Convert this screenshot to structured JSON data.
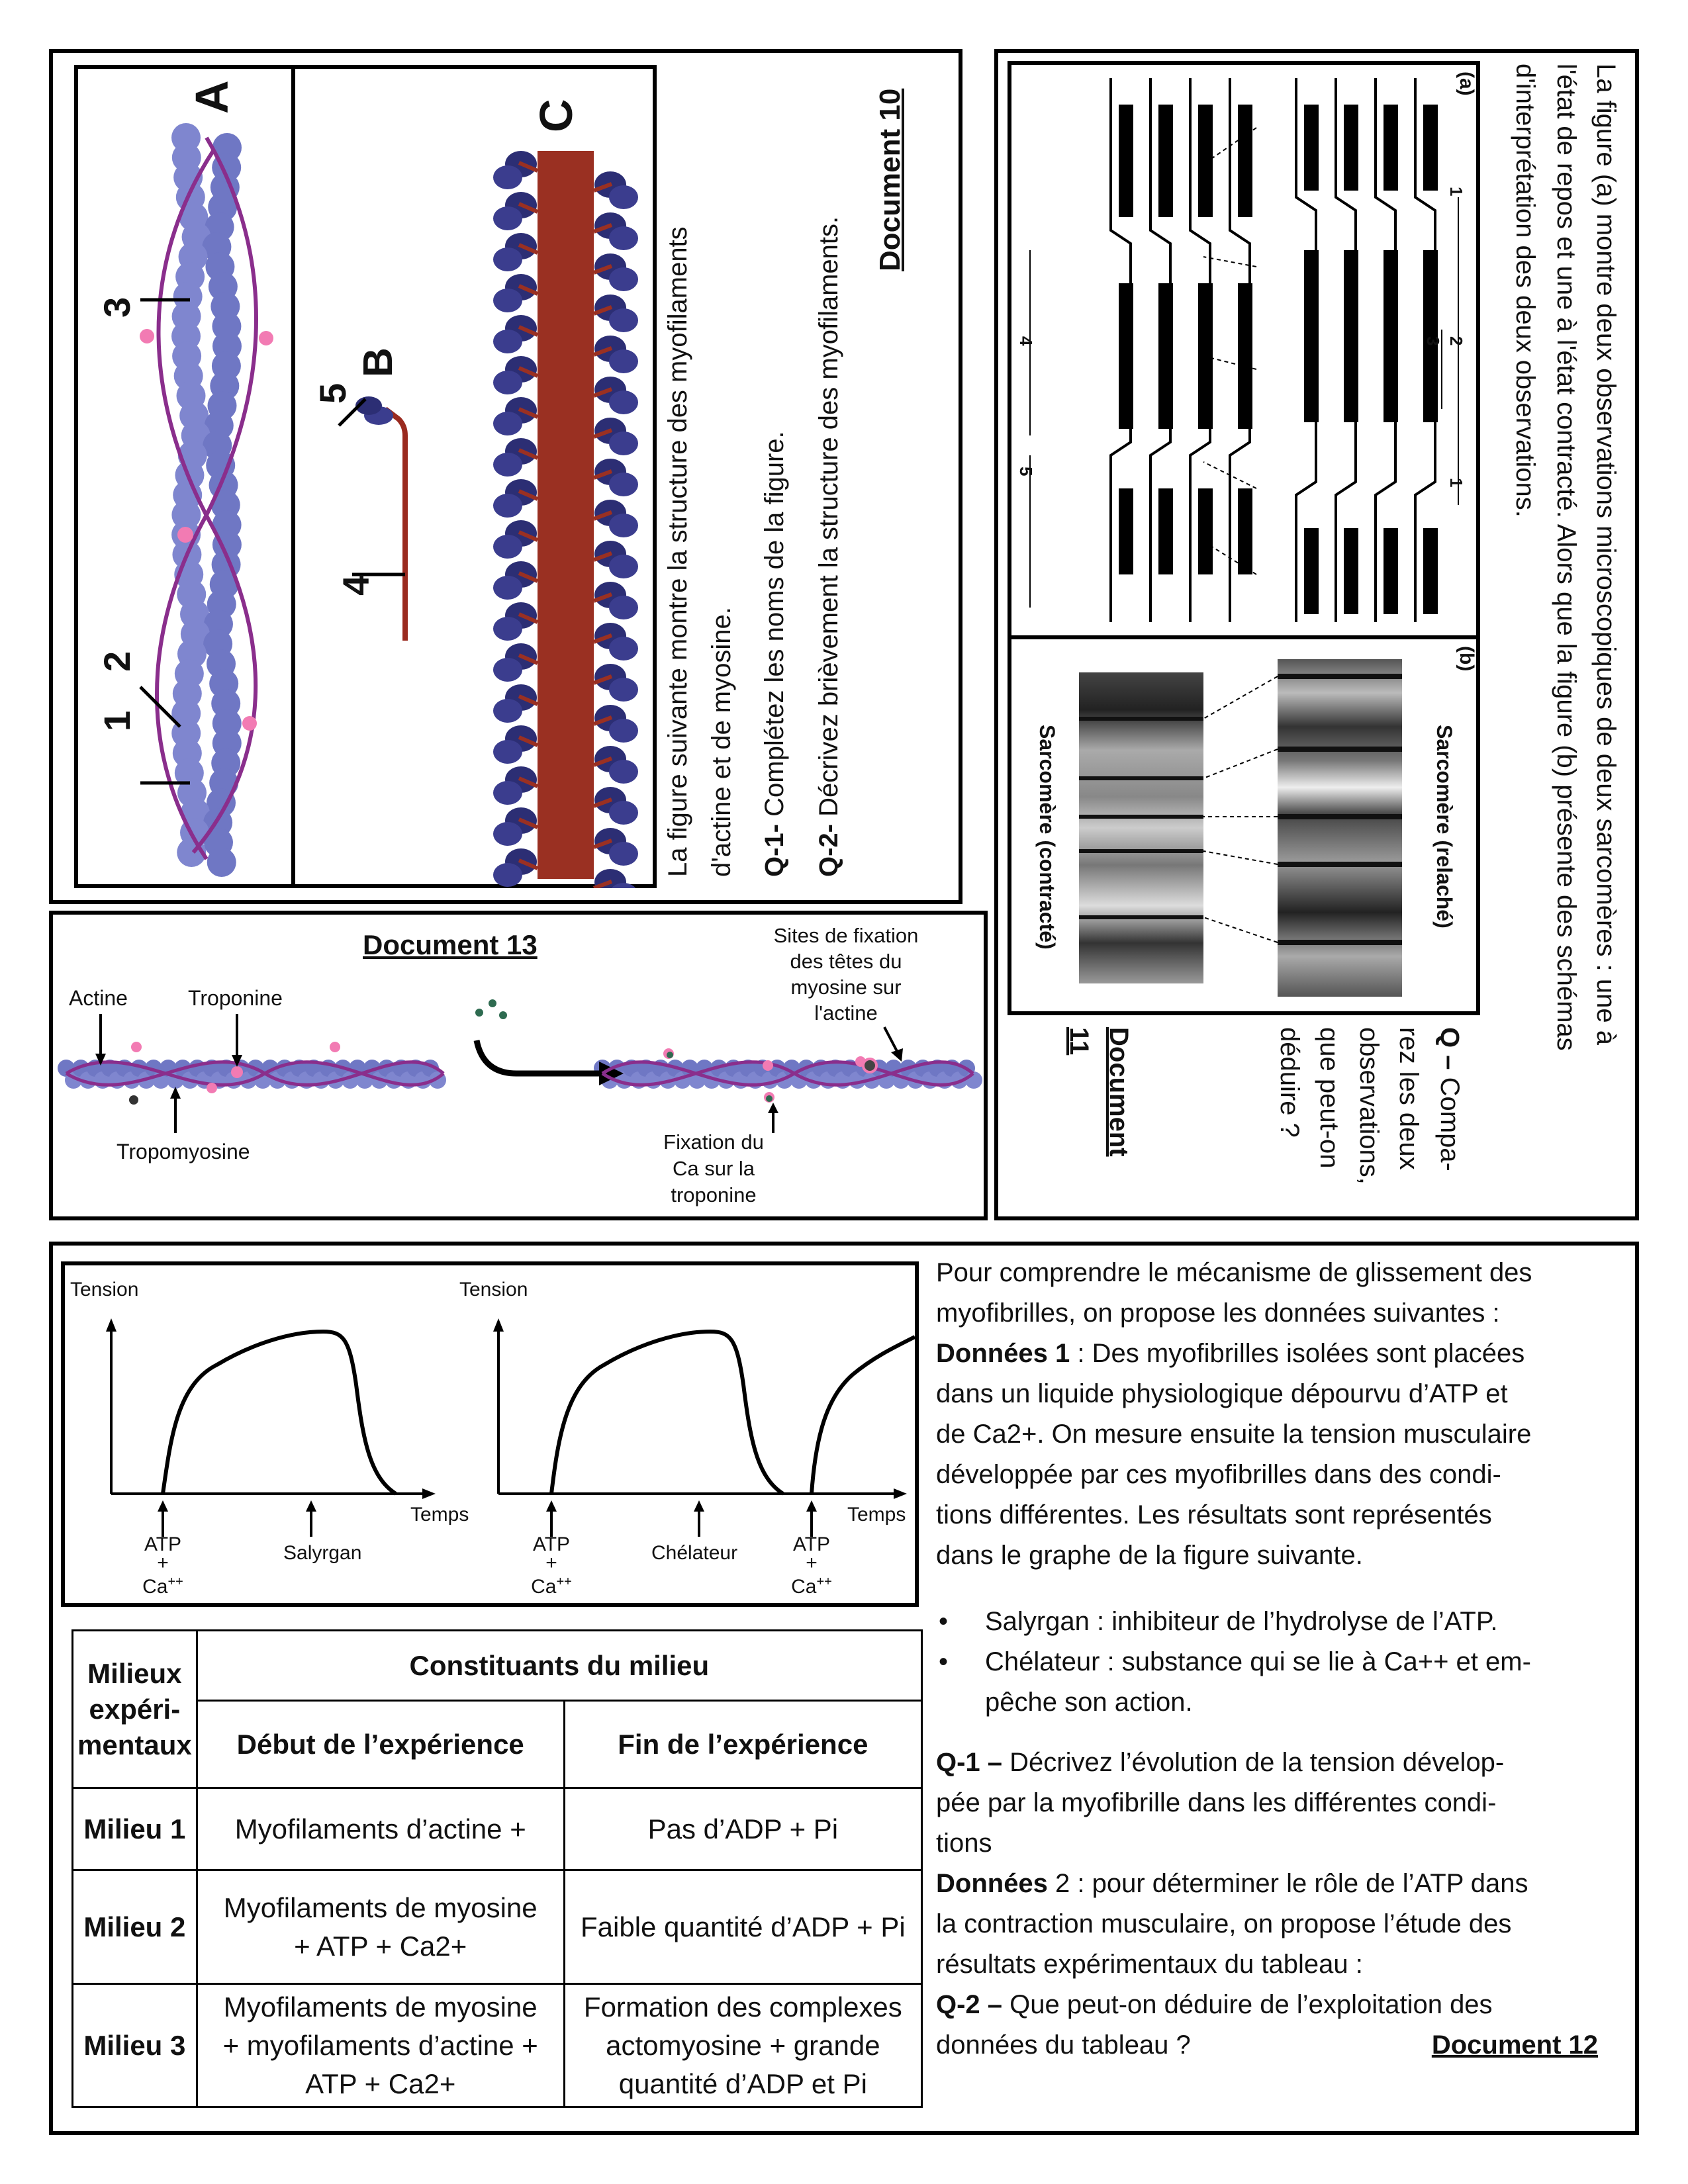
{
  "doc10": {
    "title": "Document 10",
    "label_a": "A",
    "label_b": "B",
    "label_c": "C",
    "n1": "1",
    "n2": "2",
    "n3": "3",
    "n4": "4",
    "n5": "5",
    "intro_line1": "La figure suivante montre la structure des myofilaments",
    "intro_line2": "d'actine et de myosine.",
    "q1_label": "Q-1-",
    "q1_text": "Complétez les noms de la figure.",
    "q2_label": "Q-2-",
    "q2_text": "Décrivez brièvement la structure des myofilaments."
  },
  "doc11": {
    "intro_line1": "La figure (a) montre deux observations microscopiques de deux sarcomères : une à",
    "intro_line2": "l'état de repos et une à l'état contracté. Alors que la figure (b) présente des schémas",
    "intro_line3": "d'interprétation des deux observations.",
    "fig_a": "(a)",
    "fig_b": "(b)",
    "n1": "1",
    "n2": "2",
    "n3": "3",
    "n4": "4",
    "n5": "5",
    "sarc_relache": "Sarcomère (relaché)",
    "sarc_contracte": "Sarcomère (contracté)",
    "q_label": "Q –",
    "q_line1": "Compa-",
    "q_line2": "rez les deux",
    "q_line3": "observations,",
    "q_line4": "que peut-on",
    "q_line5": "déduire ?",
    "title_line1": "Document",
    "title_line2": "11"
  },
  "doc13": {
    "title": "Document 13",
    "actine": "Actine",
    "troponine": "Troponine",
    "tropomyosine": "Tropomyosine",
    "sites_line1": "Sites de fixation",
    "sites_line2": "des têtes du",
    "sites_line3": "myosine sur",
    "sites_line4": "l'actine",
    "fix_line1": "Fixation du",
    "fix_line2": "Ca  sur la",
    "fix_line3": "troponine"
  },
  "doc12": {
    "graph": {
      "tension": "Tension",
      "temps": "Temps",
      "atp": "ATP",
      "plus": "+",
      "ca": "Ca",
      "ca_sup": "++",
      "salyrgan": "Salyrgan",
      "chelateur": "Chélateur"
    },
    "para": [
      "Pour comprendre le mécanisme de glissement des",
      "myofibrilles, on propose les données suivantes :"
    ],
    "d1_label": "Données 1",
    "d1_lines": [
      " : Des myofibrilles isolées sont placées",
      "dans un liquide physiologique dépourvu d’ATP et",
      "de Ca2+. On mesure ensuite la tension musculaire",
      "développée par ces myofibrilles dans des condi-",
      "tions différentes. Les résultats sont représentés",
      "dans le graphe de la figure suivante."
    ],
    "bullet1": "Salyrgan : inhibiteur de l’hydrolyse de l’ATP.",
    "bullet2_line1": "Chélateur : substance qui se lie à Ca++ et em-",
    "bullet2_line2": "pêche son action.",
    "q1_label": "Q-1 –",
    "q1_lines": [
      " Décrivez l’évolution de la tension dévelop-",
      "pée par la myofibrille dans les différentes condi-",
      "tions"
    ],
    "d2_label": "Données",
    "d2_lines": [
      " 2 : pour déterminer le rôle de l’ATP dans",
      "la contraction musculaire, on propose l’étude des",
      "résultats expérimentaux du tableau :"
    ],
    "q2_label": "Q-2 –",
    "q2_line1": " Que peut-on déduire de l’exploitation des",
    "q2_line2": "données du tableau ?",
    "title": "Document 12",
    "table": {
      "h_milieux_line1": "Milieux",
      "h_milieux_line2": "expéri-",
      "h_milieux_line3": "mentaux",
      "h_constituants": "Constituants du milieu",
      "h_debut": "Début de l’expérience",
      "h_fin": "Fin de l’expérience",
      "rows": [
        {
          "name": "Milieu 1",
          "debut": "Myofilaments d’actine +",
          "fin": "Pas d’ADP + Pi"
        },
        {
          "name": "Milieu 2",
          "debut_l1": "Myofilaments de myosine",
          "debut_l2": "+ ATP + Ca2+",
          "fin": "Faible quantité d’ADP + Pi"
        },
        {
          "name": "Milieu 3",
          "debut_l1": "Myofilaments de myosine",
          "debut_l2": "+ myofilaments d’actine +",
          "debut_l3": "ATP + Ca2+",
          "fin_l1": "Formation des complexes",
          "fin_l2": "actomyosine + grande",
          "fin_l3": "quantité d’ADP et Pi"
        }
      ]
    }
  }
}
